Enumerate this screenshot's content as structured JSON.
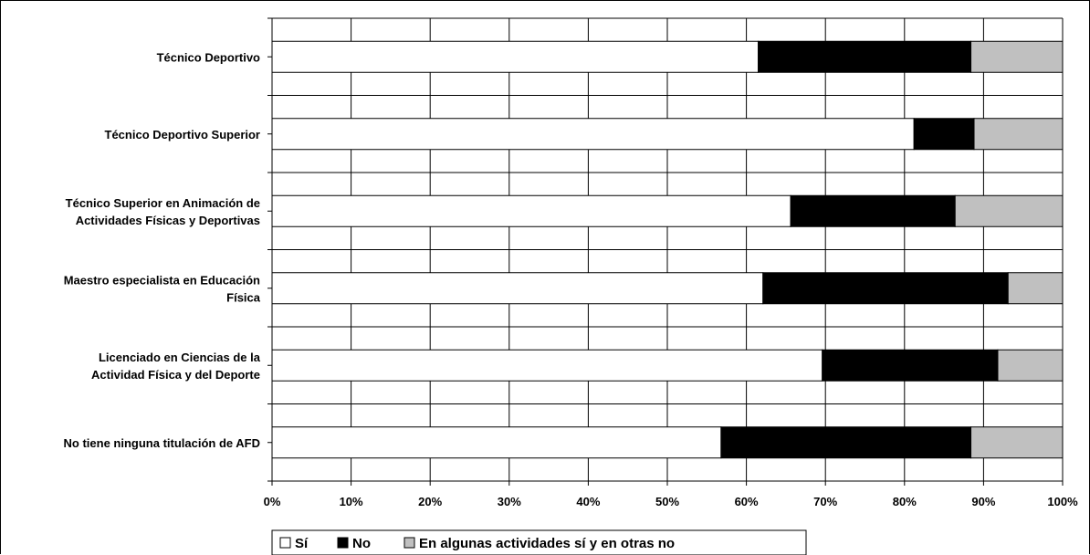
{
  "chart_data": {
    "type": "bar",
    "orientation": "horizontal",
    "stacked": "percent",
    "categories": [
      [
        "Técnico Deportivo"
      ],
      [
        "Técnico Deportivo Superior"
      ],
      [
        "Técnico Superior en Animación de",
        "Actividades Físicas y Deportivas"
      ],
      [
        "Maestro especialista en Educación",
        "Física"
      ],
      [
        "Licenciado en Ciencias de la",
        "Actividad Física y del Deporte"
      ],
      [
        "No tiene ninguna titulación de AFD"
      ]
    ],
    "series": [
      {
        "name": "Sí",
        "color": "#ffffff",
        "values": [
          61.5,
          81.2,
          65.6,
          62.1,
          69.6,
          56.8
        ]
      },
      {
        "name": "No",
        "color": "#000000",
        "values": [
          26.9,
          7.6,
          20.8,
          31.0,
          22.2,
          31.6
        ]
      },
      {
        "name": "En algunas actividades sí y en otras no",
        "color": "#c0c0c0",
        "values": [
          11.6,
          11.2,
          13.6,
          6.9,
          8.2,
          11.6
        ]
      }
    ],
    "xlim": [
      0,
      100
    ],
    "xticks": [
      "0%",
      "10%",
      "20%",
      "30%",
      "40%",
      "50%",
      "60%",
      "70%",
      "80%",
      "90%",
      "100%"
    ],
    "grid": true,
    "legend_position": "bottom",
    "title": "",
    "xlabel": "",
    "ylabel": ""
  }
}
